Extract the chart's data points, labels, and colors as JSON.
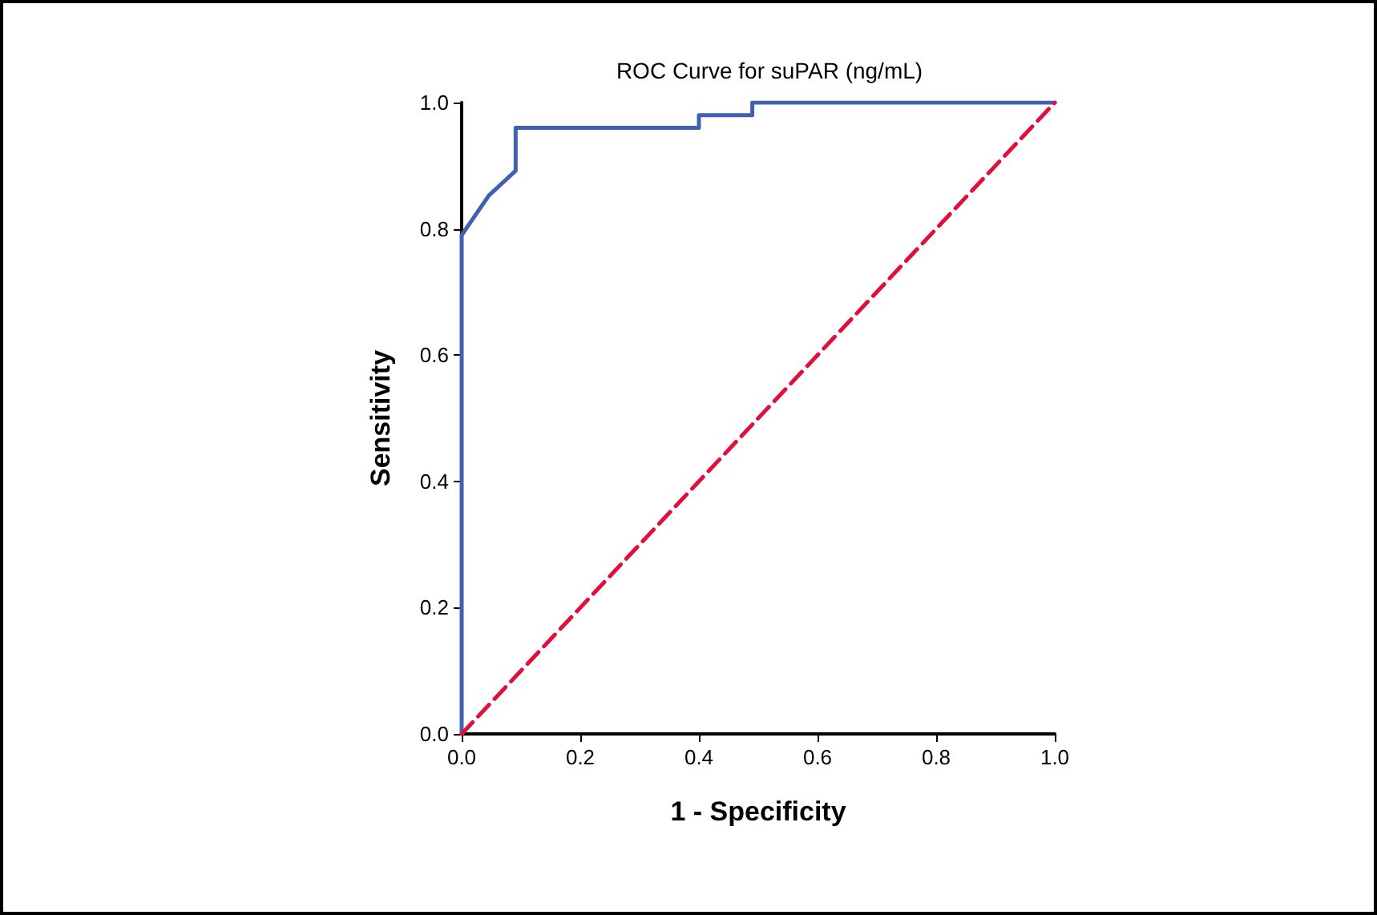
{
  "chart_data": {
    "type": "line",
    "title": "ROC Curve for suPAR (ng/mL)",
    "xlabel": "1 - Specificity",
    "ylabel": "Sensitivity",
    "xlim": [
      0,
      1
    ],
    "ylim": [
      0,
      1
    ],
    "xticks": [
      {
        "value": 0,
        "label": "0.0"
      },
      {
        "value": 0.2,
        "label": "0.2"
      },
      {
        "value": 0.4,
        "label": "0.4"
      },
      {
        "value": 0.6,
        "label": "0.6"
      },
      {
        "value": 0.8,
        "label": "0.8"
      },
      {
        "value": 1,
        "label": "1.0"
      }
    ],
    "yticks": [
      {
        "value": 0,
        "label": "0.0"
      },
      {
        "value": 0.2,
        "label": "0.2"
      },
      {
        "value": 0.4,
        "label": "0.4"
      },
      {
        "value": 0.6,
        "label": "0.6"
      },
      {
        "value": 0.8,
        "label": "0.8"
      },
      {
        "value": 1,
        "label": "1.0"
      }
    ],
    "grid": false,
    "marker": "none",
    "series": [
      {
        "color": "#4060b0",
        "line_style": "solid",
        "x": [
          0,
          0,
          0.046,
          0.091,
          0.091,
          0.4,
          0.4,
          0.49,
          0.49,
          1
        ],
        "values": [
          0,
          0.79,
          0.853,
          0.892,
          0.96,
          0.96,
          0.98,
          0.98,
          1,
          1
        ]
      },
      {
        "color": "#e0103c",
        "line_style": "dashed",
        "x": [
          0,
          1
        ],
        "values": [
          0,
          1
        ]
      }
    ]
  }
}
